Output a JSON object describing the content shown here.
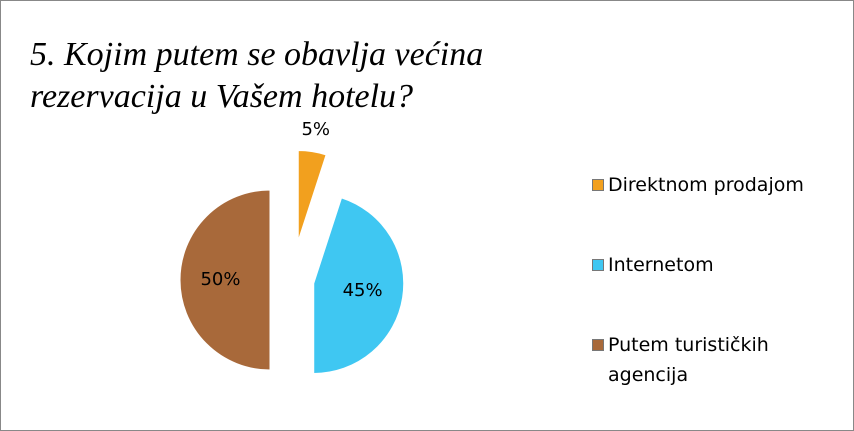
{
  "chart_data": {
    "type": "pie",
    "title": "5. Kojim putem se obavlja većina rezervacija u Vašem hotelu?",
    "categories": [
      "Direktnom prodajom",
      "Internetom",
      "Putem turističkih agencija"
    ],
    "values": [
      5,
      45,
      50
    ],
    "value_labels": [
      "5%",
      "45%",
      "50%"
    ],
    "colors": [
      "#f2a01e",
      "#3fc7f2",
      "#a8693a"
    ],
    "legend": "right"
  }
}
